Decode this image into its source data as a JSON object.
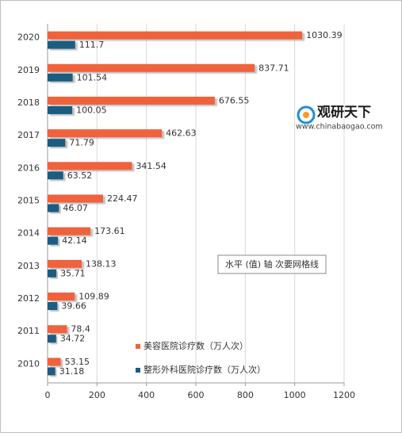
{
  "chart_data": {
    "type": "bar",
    "orientation": "horizontal",
    "categories": [
      "2020",
      "2019",
      "2018",
      "2017",
      "2016",
      "2015",
      "2014",
      "2013",
      "2012",
      "2011",
      "2010"
    ],
    "series": [
      {
        "name": "美容医院诊疗数（万人次）",
        "color": "#f0623a",
        "values": [
          1030.39,
          837.71,
          676.55,
          462.63,
          341.54,
          224.47,
          173.61,
          138.13,
          109.89,
          78.4,
          53.15
        ]
      },
      {
        "name": "整形外科医院诊疗数（万人次）",
        "color": "#1f5b82",
        "values": [
          111.7,
          101.54,
          100.05,
          71.79,
          63.52,
          46.07,
          42.14,
          35.71,
          39.66,
          34.72,
          31.18
        ]
      }
    ],
    "xlim": [
      0,
      1200
    ],
    "xticks": [
      0,
      200,
      400,
      600,
      800,
      1000,
      1200
    ],
    "grid": true,
    "annotation": "水平 (值) 轴 次要网格线",
    "watermark": {
      "brand": "观研天下",
      "url": "www.chinabaogao.com"
    }
  }
}
